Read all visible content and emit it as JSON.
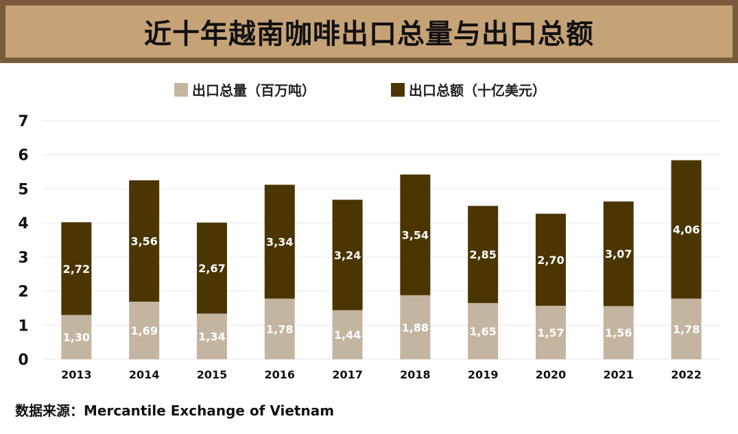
{
  "title": "近十年越南咖啡出口总量与出口总额",
  "legend": {
    "volume": "出口总量（百万吨）",
    "value": "出口总额（十亿美元）"
  },
  "source": "数据来源：Mercantile Exchange of Vietnam",
  "colors": {
    "volume": "#c4b5a1",
    "value": "#4b3500",
    "title_bg": "#c6a377",
    "title_border": "#7a5a3d"
  },
  "chart_data": {
    "type": "bar",
    "stacked": true,
    "categories": [
      "2013",
      "2014",
      "2015",
      "2016",
      "2017",
      "2018",
      "2019",
      "2020",
      "2021",
      "2022"
    ],
    "series": [
      {
        "name": "出口总量（百万吨）",
        "values": [
          1.3,
          1.69,
          1.34,
          1.78,
          1.44,
          1.88,
          1.65,
          1.57,
          1.56,
          1.78
        ],
        "labels": [
          "1,30",
          "1,69",
          "1,34",
          "1,78",
          "1,44",
          "1,88",
          "1,65",
          "1,57",
          "1,56",
          "1,78"
        ]
      },
      {
        "name": "出口总额（十亿美元）",
        "values": [
          2.72,
          3.56,
          2.67,
          3.34,
          3.24,
          3.54,
          2.85,
          2.7,
          3.07,
          4.06
        ],
        "labels": [
          "2,72",
          "3,56",
          "2,67",
          "3,34",
          "3,24",
          "3,54",
          "2,85",
          "2,70",
          "3,07",
          "4,06"
        ]
      }
    ],
    "yticks": [
      0,
      1,
      2,
      3,
      4,
      5,
      6,
      7
    ],
    "ylim": [
      0,
      7
    ],
    "grid": true,
    "legend_position": "top"
  }
}
